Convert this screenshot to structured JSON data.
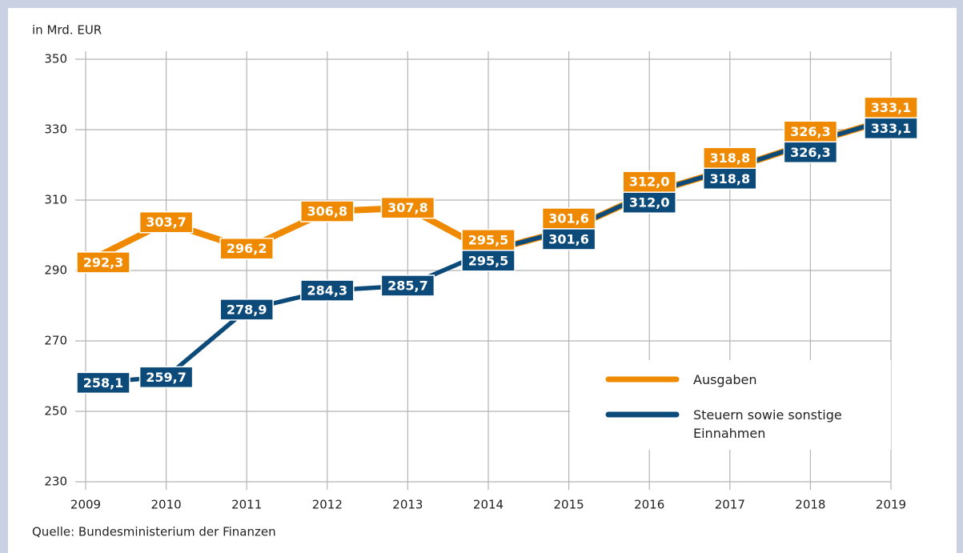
{
  "chart_data": {
    "type": "line",
    "y_label": "in Mrd. EUR",
    "source": "Quelle: Bundesministerium der Finanzen",
    "x": [
      2009,
      2010,
      2011,
      2012,
      2013,
      2014,
      2015,
      2016,
      2017,
      2018,
      2019
    ],
    "xlim": [
      2009,
      2019
    ],
    "xticks": [
      2009,
      2010,
      2011,
      2012,
      2013,
      2014,
      2015,
      2016,
      2017,
      2018,
      2019
    ],
    "ylim": [
      230,
      350
    ],
    "yticks": [
      230,
      250,
      270,
      290,
      310,
      330,
      350
    ],
    "grid": true,
    "series": [
      {
        "name": "Ausgaben",
        "color": "#ef8a00",
        "values": [
          292.3,
          303.7,
          296.2,
          306.8,
          307.8,
          295.5,
          301.6,
          312.0,
          318.8,
          326.3,
          333.1
        ],
        "value_labels": [
          "292,3",
          "303,7",
          "296,2",
          "306,8",
          "307,8",
          "295,5",
          "301,6",
          "312,0",
          "318,8",
          "326,3",
          "333,1"
        ]
      },
      {
        "name": "Steuern sowie sonstige Einnahmen",
        "color": "#0c4a7a",
        "values": [
          258.1,
          259.7,
          278.9,
          284.3,
          285.7,
          295.5,
          301.6,
          312.0,
          318.8,
          326.3,
          333.1
        ],
        "value_labels": [
          "258,1",
          "259,7",
          "278,9",
          "284,3",
          "285,7",
          "295,5",
          "301,6",
          "312,0",
          "318,8",
          "326,3",
          "333,1"
        ]
      }
    ]
  }
}
